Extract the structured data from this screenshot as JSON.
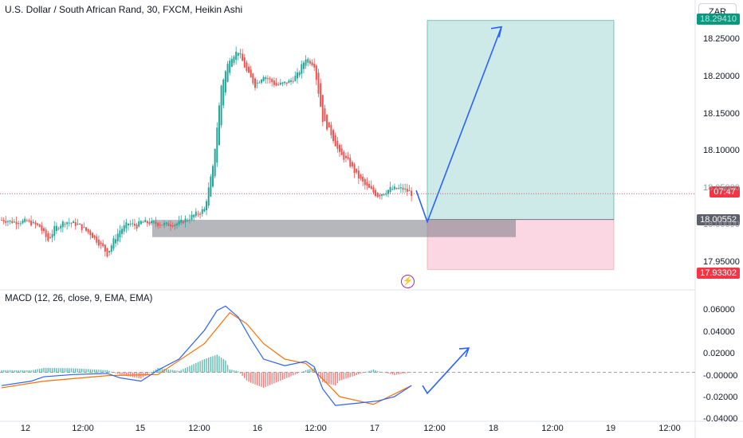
{
  "header": {
    "title": "U.S. Dollar / South African Rand, 30, FXCM, Heikin Ashi",
    "currency": "ZAR"
  },
  "macd": {
    "title": "MACD (12, 26, close, 9, EMA, EMA)",
    "yticks": [
      "0.06000",
      "0.04000",
      "0.02000",
      "-0.00000",
      "-0.02000",
      "-0.04000"
    ]
  },
  "price_axis": {
    "ticks": [
      "18.25000",
      "18.20000",
      "18.15000",
      "18.10000",
      "18.05000",
      "18.00000",
      "17.95000"
    ],
    "top_tag": "18.29410",
    "countdown_tag": "07:47",
    "entry_tag": "18.00552",
    "stop_tag": "17.93302"
  },
  "time_axis": {
    "ticks": [
      "12",
      "12:00",
      "15",
      "12:00",
      "16",
      "12:00",
      "17",
      "12:00",
      "18",
      "12:00",
      "19",
      "12:00"
    ]
  },
  "colors": {
    "up": "#26a69a",
    "down": "#ef5350",
    "target_zone": "#b2dfdb",
    "stop_zone": "#f8bbd0",
    "demand_zone": "#787b86",
    "arrow": "#2962ff",
    "macd_line": "#2962ff",
    "signal_line": "#ff6d00"
  },
  "chart_data": {
    "type": "candlestick",
    "symbol": "USDZAR",
    "timeframe": "30",
    "source": "FXCM",
    "style": "Heikin Ashi",
    "price_range": [
      17.915,
      18.295
    ],
    "close_path": [
      [
        0,
        18.005
      ],
      [
        6,
        18.002
      ],
      [
        12,
        18.003
      ],
      [
        18,
        17.995
      ],
      [
        22,
        17.975
      ],
      [
        25,
        17.992
      ],
      [
        30,
        18.003
      ],
      [
        36,
        17.998
      ],
      [
        42,
        17.985
      ],
      [
        48,
        17.965
      ],
      [
        50,
        17.955
      ],
      [
        53,
        17.975
      ],
      [
        56,
        17.99
      ],
      [
        60,
        18.0
      ],
      [
        64,
        17.996
      ],
      [
        66,
        18.002
      ],
      [
        72,
        18.0
      ],
      [
        78,
        17.998
      ],
      [
        84,
        18.0
      ],
      [
        96,
        18.02
      ],
      [
        100,
        18.08
      ],
      [
        102,
        18.14
      ],
      [
        104,
        18.2
      ],
      [
        108,
        18.24
      ],
      [
        112,
        18.25
      ],
      [
        116,
        18.22
      ],
      [
        120,
        18.2
      ],
      [
        124,
        18.215
      ],
      [
        130,
        18.2
      ],
      [
        136,
        18.205
      ],
      [
        140,
        18.215
      ],
      [
        144,
        18.24
      ],
      [
        148,
        18.23
      ],
      [
        150,
        18.19
      ],
      [
        152,
        18.15
      ],
      [
        156,
        18.13
      ],
      [
        160,
        18.1
      ],
      [
        164,
        18.09
      ],
      [
        168,
        18.07
      ],
      [
        172,
        18.055
      ],
      [
        178,
        18.04
      ],
      [
        184,
        18.05
      ],
      [
        190,
        18.05
      ],
      [
        194,
        18.043
      ]
    ],
    "current_price": 18.043,
    "trade_setup": {
      "entry": 18.00552,
      "stop_loss": 17.93302,
      "target": 18.2941,
      "demand_zone": [
        17.98,
        18.005
      ]
    },
    "macd": {
      "params": "12, 26, close, 9, EMA, EMA",
      "macd_path": [
        [
          0,
          -0.012
        ],
        [
          14,
          -0.008
        ],
        [
          20,
          -0.004
        ],
        [
          34,
          -0.002
        ],
        [
          50,
          -0.001
        ],
        [
          56,
          -0.005
        ],
        [
          66,
          -0.008
        ],
        [
          74,
          0.002
        ],
        [
          84,
          0.012
        ],
        [
          96,
          0.038
        ],
        [
          102,
          0.056
        ],
        [
          106,
          0.06
        ],
        [
          112,
          0.05
        ],
        [
          118,
          0.03
        ],
        [
          124,
          0.012
        ],
        [
          134,
          0.006
        ],
        [
          144,
          0.01
        ],
        [
          148,
          0.005
        ],
        [
          152,
          -0.015
        ],
        [
          158,
          -0.03
        ],
        [
          168,
          -0.028
        ],
        [
          178,
          -0.026
        ],
        [
          186,
          -0.022
        ],
        [
          194,
          -0.012
        ]
      ],
      "signal_path": [
        [
          0,
          -0.014
        ],
        [
          20,
          -0.008
        ],
        [
          50,
          -0.003
        ],
        [
          74,
          -0.002
        ],
        [
          96,
          0.026
        ],
        [
          108,
          0.054
        ],
        [
          116,
          0.044
        ],
        [
          124,
          0.026
        ],
        [
          134,
          0.012
        ],
        [
          144,
          0.008
        ],
        [
          152,
          -0.006
        ],
        [
          160,
          -0.022
        ],
        [
          176,
          -0.029
        ],
        [
          194,
          -0.012
        ]
      ],
      "histogram_peak": 0.012,
      "histogram_trough": -0.014
    },
    "annotations": [
      "demand zone rectangle",
      "long position box",
      "projected arrow to target",
      "MACD projected arrow"
    ]
  }
}
